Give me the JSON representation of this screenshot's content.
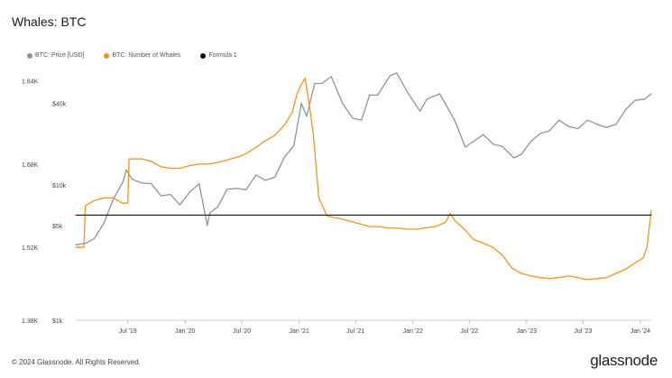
{
  "header": {
    "title": "Whales: BTC"
  },
  "legend": [
    {
      "label": "BTC: Price [USD]",
      "color": "#8c9696"
    },
    {
      "label": "BTC: Number of Whales",
      "color": "#f7931a"
    },
    {
      "label": "Formula 1",
      "color": "#111111"
    }
  ],
  "footer": {
    "copyright": "© 2024 Glassnode. All Rights Reserved.",
    "brand": "glassnode"
  },
  "chart_data": {
    "type": "line",
    "title": "Whales: BTC",
    "x_ticks": [
      "Jul '19",
      "Jan '20",
      "Jul '20",
      "Jan '21",
      "Jul '21",
      "Jan '22",
      "Jul '22",
      "Jan '23",
      "Jul '23",
      "Jan '24"
    ],
    "x_range": [
      "2019-01-15",
      "2024-02-05"
    ],
    "y_left": {
      "label": "",
      "ticks": [
        "1.38K",
        "1.52K",
        "1.68K",
        "1.84K"
      ],
      "range": [
        1380,
        1860
      ]
    },
    "y_right": {
      "label": "",
      "scale": "log",
      "ticks": [
        "$1k",
        "$5k",
        "$10k",
        "$40k"
      ],
      "range": [
        1000,
        70000
      ]
    },
    "grid": false,
    "legend_position": "top-left",
    "series": [
      {
        "name": "BTC: Price [USD]",
        "axis": "right",
        "color": "#8c9696",
        "points": [
          [
            "2019-01-15",
            3600
          ],
          [
            "2019-02-15",
            3700
          ],
          [
            "2019-03-15",
            4000
          ],
          [
            "2019-04-15",
            5200
          ],
          [
            "2019-05-15",
            7800
          ],
          [
            "2019-06-15",
            10500
          ],
          [
            "2019-06-26",
            12900
          ],
          [
            "2019-07-15",
            11000
          ],
          [
            "2019-08-15",
            10300
          ],
          [
            "2019-09-15",
            10200
          ],
          [
            "2019-10-15",
            8300
          ],
          [
            "2019-11-15",
            8500
          ],
          [
            "2019-12-15",
            7100
          ],
          [
            "2020-01-15",
            8800
          ],
          [
            "2020-02-15",
            10200
          ],
          [
            "2020-03-12",
            5000
          ],
          [
            "2020-03-20",
            6200
          ],
          [
            "2020-04-15",
            6900
          ],
          [
            "2020-05-15",
            9300
          ],
          [
            "2020-06-15",
            9400
          ],
          [
            "2020-07-15",
            9200
          ],
          [
            "2020-08-15",
            11800
          ],
          [
            "2020-09-15",
            10800
          ],
          [
            "2020-10-15",
            11400
          ],
          [
            "2020-11-15",
            16000
          ],
          [
            "2020-12-15",
            19500
          ],
          [
            "2021-01-08",
            40000
          ],
          [
            "2021-01-25",
            32000
          ],
          [
            "2021-02-20",
            56000
          ],
          [
            "2021-03-15",
            56000
          ],
          [
            "2021-04-14",
            63000
          ],
          [
            "2021-05-20",
            40000
          ],
          [
            "2021-06-22",
            31000
          ],
          [
            "2021-07-20",
            30000
          ],
          [
            "2021-08-15",
            46000
          ],
          [
            "2021-09-10",
            46000
          ],
          [
            "2021-10-20",
            64000
          ],
          [
            "2021-11-10",
            67000
          ],
          [
            "2021-12-15",
            48000
          ],
          [
            "2022-01-24",
            35000
          ],
          [
            "2022-02-15",
            43000
          ],
          [
            "2022-03-28",
            47000
          ],
          [
            "2022-05-15",
            30000
          ],
          [
            "2022-06-18",
            19000
          ],
          [
            "2022-07-15",
            21000
          ],
          [
            "2022-08-15",
            23500
          ],
          [
            "2022-09-15",
            20000
          ],
          [
            "2022-10-15",
            19200
          ],
          [
            "2022-11-21",
            15800
          ],
          [
            "2022-12-15",
            16800
          ],
          [
            "2023-01-15",
            21000
          ],
          [
            "2023-02-15",
            24000
          ],
          [
            "2023-03-15",
            25000
          ],
          [
            "2023-04-15",
            30000
          ],
          [
            "2023-05-15",
            27000
          ],
          [
            "2023-06-15",
            26000
          ],
          [
            "2023-07-15",
            30000
          ],
          [
            "2023-08-15",
            28000
          ],
          [
            "2023-09-15",
            26500
          ],
          [
            "2023-10-15",
            28000
          ],
          [
            "2023-11-15",
            36000
          ],
          [
            "2023-12-15",
            42000
          ],
          [
            "2024-01-15",
            43000
          ],
          [
            "2024-02-05",
            47000
          ]
        ]
      },
      {
        "name": "BTC: Number of Whales",
        "axis": "left",
        "color": "#f7931a",
        "points": [
          [
            "2019-01-15",
            1520
          ],
          [
            "2019-02-10",
            1520
          ],
          [
            "2019-02-15",
            1600
          ],
          [
            "2019-03-15",
            1610
          ],
          [
            "2019-04-15",
            1615
          ],
          [
            "2019-05-15",
            1615
          ],
          [
            "2019-06-15",
            1605
          ],
          [
            "2019-07-01",
            1605
          ],
          [
            "2019-07-05",
            1690
          ],
          [
            "2019-08-15",
            1690
          ],
          [
            "2019-09-15",
            1685
          ],
          [
            "2019-10-15",
            1675
          ],
          [
            "2019-11-15",
            1672
          ],
          [
            "2019-12-15",
            1672
          ],
          [
            "2020-01-15",
            1677
          ],
          [
            "2020-02-15",
            1680
          ],
          [
            "2020-03-15",
            1680
          ],
          [
            "2020-04-15",
            1683
          ],
          [
            "2020-05-15",
            1688
          ],
          [
            "2020-06-15",
            1693
          ],
          [
            "2020-07-15",
            1700
          ],
          [
            "2020-08-15",
            1712
          ],
          [
            "2020-09-15",
            1725
          ],
          [
            "2020-10-15",
            1735
          ],
          [
            "2020-11-15",
            1755
          ],
          [
            "2020-12-10",
            1780
          ],
          [
            "2020-12-25",
            1815
          ],
          [
            "2021-01-05",
            1830
          ],
          [
            "2021-01-20",
            1845
          ],
          [
            "2021-02-01",
            1800
          ],
          [
            "2021-02-15",
            1740
          ],
          [
            "2021-03-05",
            1615
          ],
          [
            "2021-04-01",
            1580
          ],
          [
            "2021-05-15",
            1575
          ],
          [
            "2021-06-15",
            1570
          ],
          [
            "2021-07-15",
            1565
          ],
          [
            "2021-08-15",
            1560
          ],
          [
            "2021-09-15",
            1560
          ],
          [
            "2021-10-15",
            1557
          ],
          [
            "2021-11-15",
            1557
          ],
          [
            "2021-12-15",
            1555
          ],
          [
            "2022-01-15",
            1555
          ],
          [
            "2022-02-15",
            1558
          ],
          [
            "2022-03-15",
            1560
          ],
          [
            "2022-04-15",
            1568
          ],
          [
            "2022-04-30",
            1585
          ],
          [
            "2022-05-15",
            1572
          ],
          [
            "2022-06-15",
            1555
          ],
          [
            "2022-07-15",
            1535
          ],
          [
            "2022-08-15",
            1528
          ],
          [
            "2022-09-15",
            1520
          ],
          [
            "2022-10-15",
            1505
          ],
          [
            "2022-11-15",
            1480
          ],
          [
            "2022-12-15",
            1470
          ],
          [
            "2023-01-15",
            1465
          ],
          [
            "2023-02-15",
            1462
          ],
          [
            "2023-03-15",
            1460
          ],
          [
            "2023-04-15",
            1462
          ],
          [
            "2023-05-15",
            1465
          ],
          [
            "2023-06-15",
            1462
          ],
          [
            "2023-07-15",
            1458
          ],
          [
            "2023-08-15",
            1460
          ],
          [
            "2023-09-15",
            1462
          ],
          [
            "2023-10-15",
            1470
          ],
          [
            "2023-11-15",
            1478
          ],
          [
            "2023-12-15",
            1490
          ],
          [
            "2024-01-10",
            1500
          ],
          [
            "2024-01-22",
            1520
          ],
          [
            "2024-02-05",
            1590
          ]
        ]
      },
      {
        "name": "Formula 1",
        "axis": "left",
        "color": "#111111",
        "points": [
          [
            "2019-01-15",
            1582
          ],
          [
            "2024-02-05",
            1582
          ]
        ]
      }
    ]
  }
}
